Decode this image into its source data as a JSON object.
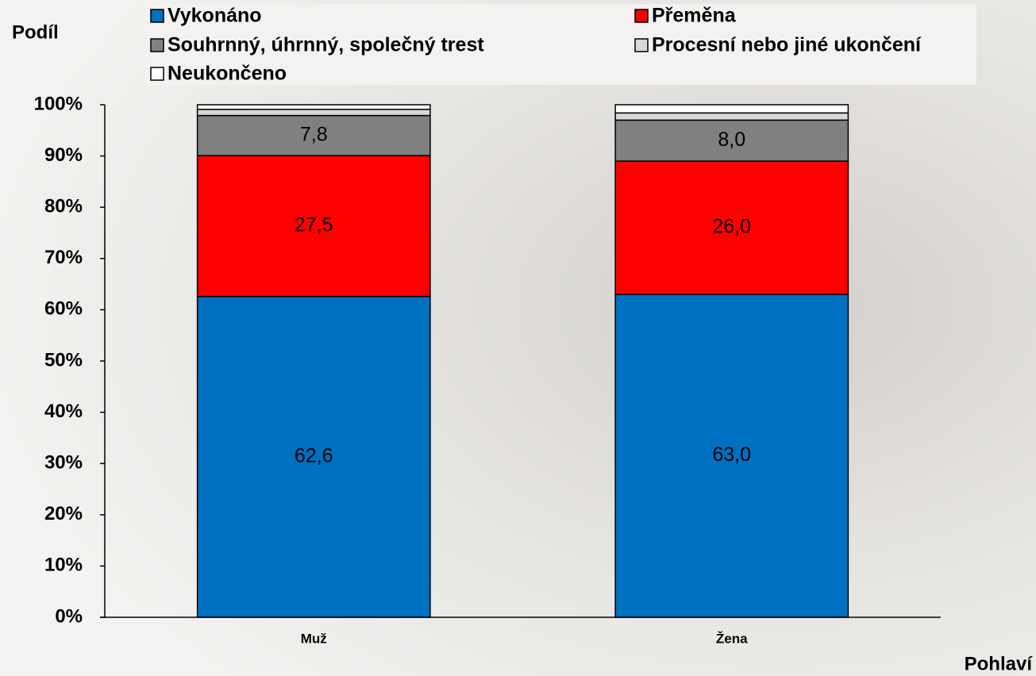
{
  "chart_data": {
    "type": "stacked_bar",
    "y_label": "Podíl",
    "x_label": "Pohlaví",
    "categories": [
      "Muž",
      "Žena"
    ],
    "series": [
      {
        "name": "Vykonáno",
        "color": "#0070c0",
        "values": [
          62.6,
          63.0
        ],
        "value_labels": [
          "62,6",
          "63,0"
        ]
      },
      {
        "name": "Přeměna",
        "color": "#ff0000",
        "values": [
          27.5,
          26.0
        ],
        "value_labels": [
          "27,5",
          "26,0"
        ]
      },
      {
        "name": "Souhrnný, úhrnný, společný trest",
        "color": "#808080",
        "values": [
          7.8,
          8.0
        ],
        "value_labels": [
          "7,8",
          "8,0"
        ]
      },
      {
        "name": "Procesní nebo jiné ukončení",
        "color": "#d9d9d9",
        "values": [
          1.2,
          1.4
        ]
      },
      {
        "name": "Neukončeno",
        "color": "#ffffff",
        "values": [
          0.9,
          1.6
        ]
      }
    ],
    "ylim": [
      0,
      100
    ],
    "yticks": [
      {
        "value": 0,
        "label": "0%"
      },
      {
        "value": 10,
        "label": "10%"
      },
      {
        "value": 20,
        "label": "20%"
      },
      {
        "value": 30,
        "label": "30%"
      },
      {
        "value": 40,
        "label": "40%"
      },
      {
        "value": 50,
        "label": "50%"
      },
      {
        "value": 60,
        "label": "60%"
      },
      {
        "value": 70,
        "label": "70%"
      },
      {
        "value": 80,
        "label": "80%"
      },
      {
        "value": 90,
        "label": "90%"
      },
      {
        "value": 100,
        "label": "100%"
      }
    ],
    "grid": false,
    "legend": "top"
  }
}
